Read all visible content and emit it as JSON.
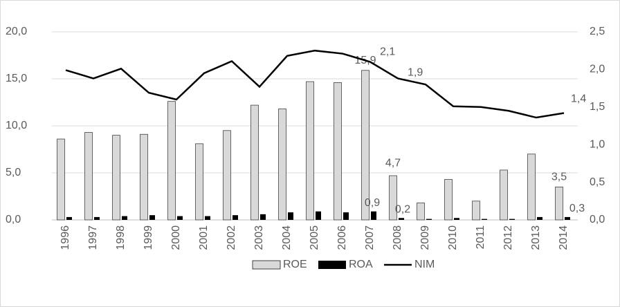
{
  "chart_data": {
    "type": "bar-line",
    "categories": [
      "1996",
      "1997",
      "1998",
      "1999",
      "2000",
      "2001",
      "2002",
      "2003",
      "2004",
      "2005",
      "2006",
      "2007",
      "2008",
      "2009",
      "2010",
      "2011",
      "2012",
      "2013",
      "2014"
    ],
    "series": [
      {
        "name": "ROE",
        "type": "bar",
        "color": "#d9d9d9",
        "values": [
          8.6,
          9.3,
          9.0,
          9.1,
          12.6,
          8.1,
          9.5,
          12.2,
          11.8,
          14.7,
          14.6,
          15.9,
          4.7,
          1.8,
          4.3,
          2.0,
          5.3,
          7.0,
          3.5
        ],
        "value_labels": [
          null,
          null,
          null,
          null,
          null,
          null,
          null,
          null,
          null,
          null,
          null,
          "15,9",
          "4,7",
          null,
          null,
          null,
          null,
          null,
          "3,5"
        ]
      },
      {
        "name": "ROA",
        "type": "bar",
        "color": "#000000",
        "values": [
          0.3,
          0.3,
          0.4,
          0.5,
          0.4,
          0.4,
          0.5,
          0.6,
          0.8,
          0.9,
          0.8,
          0.9,
          0.2,
          0.1,
          0.2,
          0.1,
          0.1,
          0.3,
          0.3
        ],
        "value_labels": [
          null,
          null,
          null,
          null,
          null,
          null,
          null,
          null,
          null,
          null,
          null,
          "0,9",
          "0,2",
          null,
          null,
          null,
          null,
          null,
          "0,3"
        ]
      },
      {
        "name": "NIM",
        "type": "line",
        "axis": "y2",
        "color": "#000000",
        "values": [
          1.99,
          1.88,
          2.01,
          1.69,
          1.6,
          1.95,
          2.11,
          1.77,
          2.18,
          2.25,
          2.21,
          2.1,
          1.88,
          1.8,
          1.51,
          1.5,
          1.45,
          1.36,
          1.42
        ],
        "value_labels": [
          null,
          null,
          null,
          null,
          null,
          null,
          null,
          null,
          null,
          null,
          null,
          "2,1",
          "1,9",
          null,
          null,
          null,
          null,
          null,
          "1,4"
        ]
      }
    ],
    "ylim": [
      0,
      20
    ],
    "yticks": [
      {
        "value": 0,
        "label": "0,0"
      },
      {
        "value": 5,
        "label": "5,0"
      },
      {
        "value": 10,
        "label": "10,0"
      },
      {
        "value": 15,
        "label": "15,0"
      },
      {
        "value": 20,
        "label": "20,0"
      }
    ],
    "y2lim": [
      0,
      2.5
    ],
    "y2ticks": [
      {
        "value": 0,
        "label": "0,0"
      },
      {
        "value": 0.5,
        "label": "0,5"
      },
      {
        "value": 1,
        "label": "1,0"
      },
      {
        "value": 1.5,
        "label": "1,5"
      },
      {
        "value": 2,
        "label": "2,0"
      },
      {
        "value": 2.5,
        "label": "2,5"
      }
    ],
    "grid": true,
    "legend": "bottom"
  }
}
